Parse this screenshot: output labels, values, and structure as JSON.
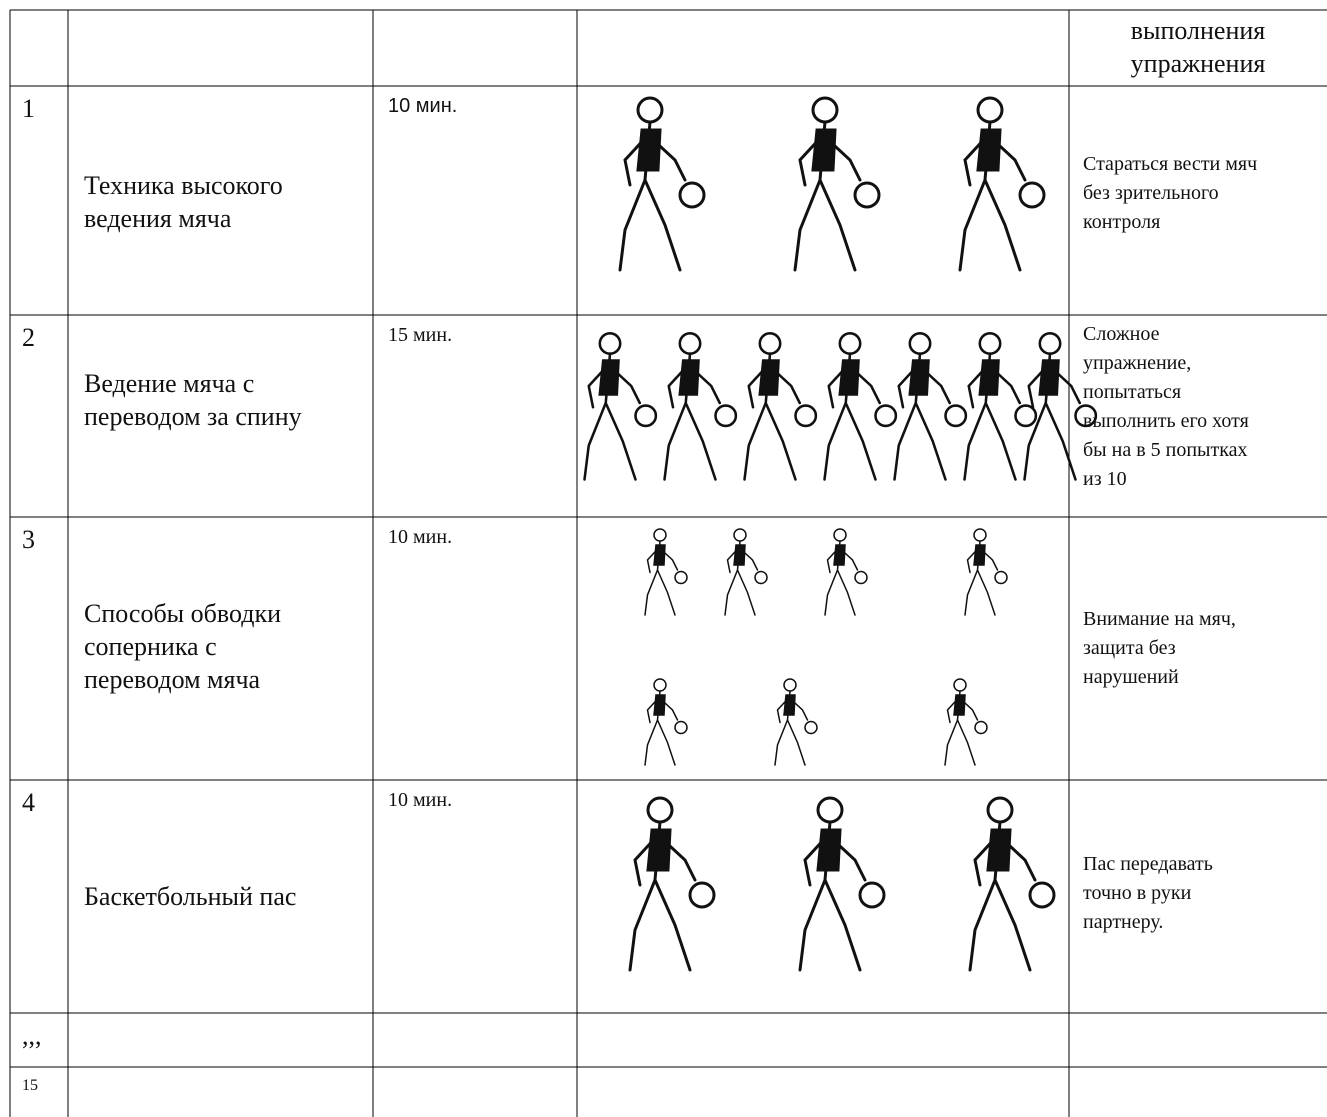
{
  "header_fragment": [
    "выполнения",
    "упражнения"
  ],
  "rows": [
    {
      "number": "1",
      "exercise": [
        "Техника высокого",
        "ведения мяча"
      ],
      "time": "10 мин.",
      "note": [
        "Стараться вести мяч",
        "без зрительного",
        "контроля"
      ]
    },
    {
      "number": "2",
      "exercise": [
        "Ведение мяча с",
        "переводом за спину"
      ],
      "time": "15 мин.",
      "note": [
        "Сложное",
        "упражнение,",
        "попытаться",
        "выполнить его хотя",
        "бы на в 5 попытках",
        "из 10"
      ]
    },
    {
      "number": "3",
      "exercise": [
        "Способы обводки",
        "соперника с",
        "переводом мяча"
      ],
      "time": "10 мин.",
      "note": [
        "Внимание на мяч,",
        "защита без",
        "нарушений"
      ]
    },
    {
      "number": "4",
      "exercise": [
        "Баскетбольный пас"
      ],
      "time": "10 мин.",
      "note": [
        "Пас передавать",
        "точно в руки",
        "партнеру."
      ]
    },
    {
      "number": ",,,"
    },
    {
      "number": "15"
    }
  ]
}
